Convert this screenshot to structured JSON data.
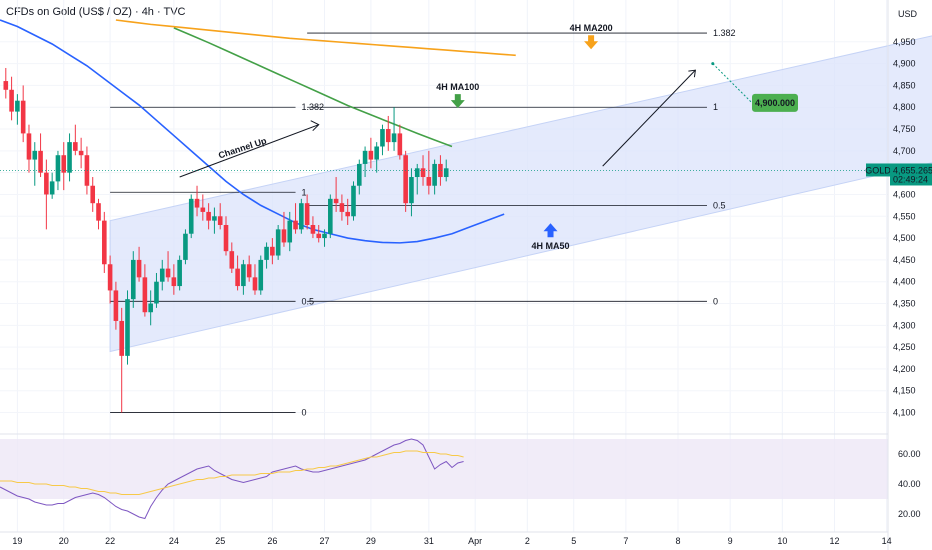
{
  "header": {
    "title": "CFDs on Gold (US$ / OZ) · 4h · TVC",
    "currency": "USD"
  },
  "price_tag": {
    "symbol": "GOLD",
    "price": "4,655.265",
    "countdown": "02:49:24",
    "color": "#089981"
  },
  "target_badge": {
    "text": "4,900.000",
    "color": "#4caf50"
  },
  "colors": {
    "up": "#089981",
    "down": "#f23645",
    "ma50": "#2962ff",
    "ma100": "#43a047",
    "ma200": "#f7a21b",
    "channel": "#dbe3fb",
    "rsi": "#7e57c2"
  },
  "chart_data": {
    "type": "candlestick",
    "title": "CFDs on Gold (US$ / OZ) · 4h · TVC",
    "ylabel": "USD",
    "y_ticks": [
      4100,
      4150,
      4200,
      4250,
      4300,
      4350,
      4400,
      4450,
      4500,
      4550,
      4600,
      4650,
      4700,
      4750,
      4800,
      4850,
      4900,
      4950
    ],
    "ylim": [
      4060,
      5000
    ],
    "x_ticks": [
      {
        "label": "19",
        "i": 3
      },
      {
        "label": "20",
        "i": 11
      },
      {
        "label": "22",
        "i": 19
      },
      {
        "label": "24",
        "i": 30
      },
      {
        "label": "25",
        "i": 38
      },
      {
        "label": "26",
        "i": 47
      },
      {
        "label": "27",
        "i": 56
      },
      {
        "label": "29",
        "i": 64
      },
      {
        "label": "31",
        "i": 74
      },
      {
        "label": "Apr",
        "i": 82
      },
      {
        "label": "2",
        "i": 91
      },
      {
        "label": "5",
        "i": 99
      },
      {
        "label": "7",
        "i": 108
      },
      {
        "label": "8",
        "i": 117
      },
      {
        "label": "9",
        "i": 126
      },
      {
        "label": "10",
        "i": 135
      },
      {
        "label": "12",
        "i": 144
      },
      {
        "label": "14",
        "i": 153
      }
    ],
    "candles": [
      [
        4860,
        4890,
        4820,
        4840
      ],
      [
        4840,
        4870,
        4770,
        4790
      ],
      [
        4790,
        4830,
        4760,
        4815
      ],
      [
        4815,
        4850,
        4720,
        4740
      ],
      [
        4740,
        4760,
        4650,
        4680
      ],
      [
        4680,
        4720,
        4620,
        4700
      ],
      [
        4700,
        4740,
        4640,
        4650
      ],
      [
        4650,
        4680,
        4520,
        4600
      ],
      [
        4600,
        4650,
        4590,
        4630
      ],
      [
        4630,
        4700,
        4610,
        4690
      ],
      [
        4690,
        4720,
        4610,
        4650
      ],
      [
        4650,
        4740,
        4630,
        4720
      ],
      [
        4720,
        4760,
        4690,
        4700
      ],
      [
        4700,
        4730,
        4660,
        4690
      ],
      [
        4690,
        4710,
        4600,
        4620
      ],
      [
        4620,
        4640,
        4560,
        4580
      ],
      [
        4580,
        4590,
        4520,
        4540
      ],
      [
        4540,
        4560,
        4420,
        4440
      ],
      [
        4440,
        4460,
        4350,
        4380
      ],
      [
        4380,
        4400,
        4290,
        4310
      ],
      [
        4310,
        4340,
        4100,
        4230
      ],
      [
        4230,
        4380,
        4210,
        4360
      ],
      [
        4360,
        4470,
        4340,
        4450
      ],
      [
        4450,
        4480,
        4400,
        4410
      ],
      [
        4410,
        4440,
        4320,
        4330
      ],
      [
        4330,
        4380,
        4300,
        4350
      ],
      [
        4350,
        4420,
        4340,
        4400
      ],
      [
        4400,
        4450,
        4380,
        4430
      ],
      [
        4430,
        4470,
        4400,
        4410
      ],
      [
        4410,
        4440,
        4370,
        4390
      ],
      [
        4390,
        4460,
        4380,
        4450
      ],
      [
        4450,
        4520,
        4440,
        4510
      ],
      [
        4510,
        4600,
        4500,
        4590
      ],
      [
        4590,
        4620,
        4550,
        4570
      ],
      [
        4570,
        4600,
        4540,
        4560
      ],
      [
        4560,
        4580,
        4520,
        4540
      ],
      [
        4540,
        4570,
        4510,
        4550
      ],
      [
        4550,
        4580,
        4520,
        4530
      ],
      [
        4530,
        4550,
        4460,
        4470
      ],
      [
        4470,
        4490,
        4420,
        4430
      ],
      [
        4430,
        4460,
        4380,
        4390
      ],
      [
        4390,
        4450,
        4370,
        4440
      ],
      [
        4440,
        4460,
        4400,
        4410
      ],
      [
        4410,
        4440,
        4370,
        4380
      ],
      [
        4380,
        4460,
        4370,
        4450
      ],
      [
        4450,
        4490,
        4430,
        4480
      ],
      [
        4480,
        4500,
        4440,
        4460
      ],
      [
        4460,
        4530,
        4450,
        4520
      ],
      [
        4520,
        4560,
        4480,
        4490
      ],
      [
        4490,
        4560,
        4470,
        4540
      ],
      [
        4540,
        4580,
        4510,
        4520
      ],
      [
        4520,
        4590,
        4510,
        4580
      ],
      [
        4580,
        4600,
        4520,
        4530
      ],
      [
        4530,
        4550,
        4500,
        4510
      ],
      [
        4510,
        4530,
        4490,
        4500
      ],
      [
        4500,
        4520,
        4480,
        4510
      ],
      [
        4510,
        4600,
        4500,
        4590
      ],
      [
        4590,
        4640,
        4560,
        4580
      ],
      [
        4580,
        4600,
        4540,
        4560
      ],
      [
        4560,
        4590,
        4530,
        4550
      ],
      [
        4550,
        4630,
        4540,
        4620
      ],
      [
        4620,
        4680,
        4600,
        4670
      ],
      [
        4670,
        4710,
        4640,
        4700
      ],
      [
        4700,
        4730,
        4660,
        4680
      ],
      [
        4680,
        4720,
        4650,
        4710
      ],
      [
        4710,
        4760,
        4690,
        4750
      ],
      [
        4750,
        4780,
        4700,
        4720
      ],
      [
        4720,
        4800,
        4700,
        4740
      ],
      [
        4740,
        4760,
        4680,
        4690
      ],
      [
        4690,
        4700,
        4560,
        4580
      ],
      [
        4580,
        4660,
        4550,
        4640
      ],
      [
        4640,
        4670,
        4600,
        4660
      ],
      [
        4660,
        4690,
        4620,
        4640
      ],
      [
        4640,
        4700,
        4600,
        4620
      ],
      [
        4620,
        4680,
        4600,
        4670
      ],
      [
        4670,
        4690,
        4620,
        4640
      ],
      [
        4640,
        4680,
        4630,
        4660
      ]
    ],
    "moving_averages": [
      {
        "name": "4H MA50",
        "start": 0,
        "values": [
          5000,
          4985,
          4965,
          4945,
          4920,
          4895,
          4865,
          4835,
          4805,
          4770,
          4735,
          4700,
          4665,
          4630,
          4600,
          4575,
          4555,
          4535,
          4520,
          4510,
          4500,
          4494,
          4490,
          4489,
          4492,
          4500,
          4510,
          4525,
          4540,
          4555
        ]
      },
      {
        "name": "4H MA100",
        "start": 30,
        "values": [
          4982,
          4965,
          4948,
          4930,
          4912,
          4894,
          4876,
          4858,
          4840,
          4822,
          4804,
          4788,
          4772,
          4756,
          4740,
          4725,
          4710
        ]
      },
      {
        "name": "4H MA200",
        "start": 20,
        "values": [
          5000,
          4995,
          4990,
          4986,
          4982,
          4978,
          4974,
          4970,
          4966,
          4962,
          4958,
          4955,
          4952,
          4949,
          4946,
          4943,
          4940,
          4937,
          4934,
          4931,
          4928,
          4925,
          4922,
          4919
        ]
      }
    ],
    "channel": {
      "name": "Channel Up",
      "lower": [
        [
          19,
          4240
        ],
        [
          173,
          4710
        ]
      ],
      "upper": [
        [
          19,
          4540
        ],
        [
          173,
          5000
        ]
      ]
    },
    "fib_levels": [
      {
        "label": "1.382",
        "value": 4800,
        "i1": 19,
        "i2": 51
      },
      {
        "label": "1",
        "value": 4605,
        "i1": 19,
        "i2": 51
      },
      {
        "label": "0.5",
        "value": 4355,
        "i1": 19,
        "i2": 51
      },
      {
        "label": "0",
        "value": 4100,
        "i1": 19,
        "i2": 51
      },
      {
        "label": "1.382",
        "value": 4970,
        "i1": 53,
        "i2": 122
      },
      {
        "label": "1",
        "value": 4800,
        "i1": 53,
        "i2": 122
      },
      {
        "label": "0.5",
        "value": 4575,
        "i1": 53,
        "i2": 122
      },
      {
        "label": "0",
        "value": 4355,
        "i1": 53,
        "i2": 122
      }
    ],
    "projection": {
      "from": [
        104,
        4665
      ],
      "to": [
        120,
        4885
      ]
    },
    "target_point": [
      123,
      4900
    ],
    "annotations": [
      {
        "text": "4H MA200",
        "i": 102,
        "y": 4975
      },
      {
        "text": "4H MA100",
        "i": 79,
        "y": 4840
      },
      {
        "text": "4H MA50",
        "i": 95,
        "y": 4475
      },
      {
        "text": "Channel Up",
        "i": 42,
        "y": 4700
      }
    ],
    "rsi": {
      "y_ticks": [
        20,
        40,
        60
      ],
      "ylim": [
        12,
        72
      ],
      "band": [
        30,
        70
      ],
      "rsi_values": [
        38,
        36,
        34,
        32,
        31,
        30,
        28,
        27,
        26,
        26,
        27,
        27,
        29,
        31,
        32,
        33,
        34,
        33,
        31,
        28,
        25,
        23,
        22,
        20,
        18,
        17,
        25,
        31,
        36,
        40,
        42,
        44,
        46,
        48,
        50,
        51,
        52,
        49,
        47,
        45,
        43,
        42,
        41,
        42,
        43,
        44,
        45,
        48,
        49,
        50,
        51,
        52,
        50,
        49,
        48,
        48,
        49,
        50,
        51,
        52,
        53,
        54,
        55,
        56,
        58,
        60,
        62,
        64,
        66,
        67,
        69,
        70,
        69,
        66,
        58,
        50,
        53,
        55,
        51,
        54,
        55
      ],
      "ma_values": [
        42,
        42,
        42,
        41,
        41,
        41,
        40,
        40,
        40,
        39,
        39,
        39,
        38,
        38,
        37,
        37,
        36,
        35,
        35,
        34,
        34,
        33,
        33,
        33,
        33,
        34,
        35,
        36,
        37,
        38,
        39,
        40,
        41,
        42,
        43,
        43,
        44,
        44,
        45,
        45,
        46,
        46,
        46,
        46,
        46,
        47,
        47,
        47,
        48,
        48,
        48,
        49,
        49,
        50,
        50,
        51,
        51,
        52,
        52,
        53,
        54,
        55,
        56,
        57,
        58,
        58,
        59,
        60,
        61,
        61,
        62,
        62,
        62,
        61,
        61,
        61,
        60,
        60,
        59,
        59,
        58
      ]
    }
  }
}
